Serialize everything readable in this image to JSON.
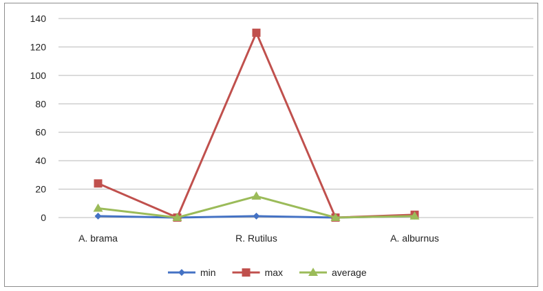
{
  "chart_data": {
    "type": "line",
    "title": "",
    "xlabel": "",
    "ylabel": "",
    "ylim": [
      0,
      140
    ],
    "yticks": [
      0,
      20,
      40,
      60,
      80,
      100,
      120,
      140
    ],
    "grid": true,
    "legend_position": "bottom",
    "x_labels": [
      "A. brama",
      "",
      "R. Rutilus",
      "",
      "A. alburnus",
      ""
    ],
    "series": [
      {
        "name": "min",
        "color": "#4472C4",
        "marker": "diamond",
        "values": [
          1,
          0,
          1,
          0,
          1,
          null
        ]
      },
      {
        "name": "max",
        "color": "#C0504D",
        "marker": "square",
        "values": [
          24,
          0,
          130,
          0,
          2,
          null
        ]
      },
      {
        "name": "average",
        "color": "#9BBB59",
        "marker": "triangle",
        "values": [
          6.5,
          0,
          15,
          0,
          1,
          null
        ]
      }
    ]
  }
}
